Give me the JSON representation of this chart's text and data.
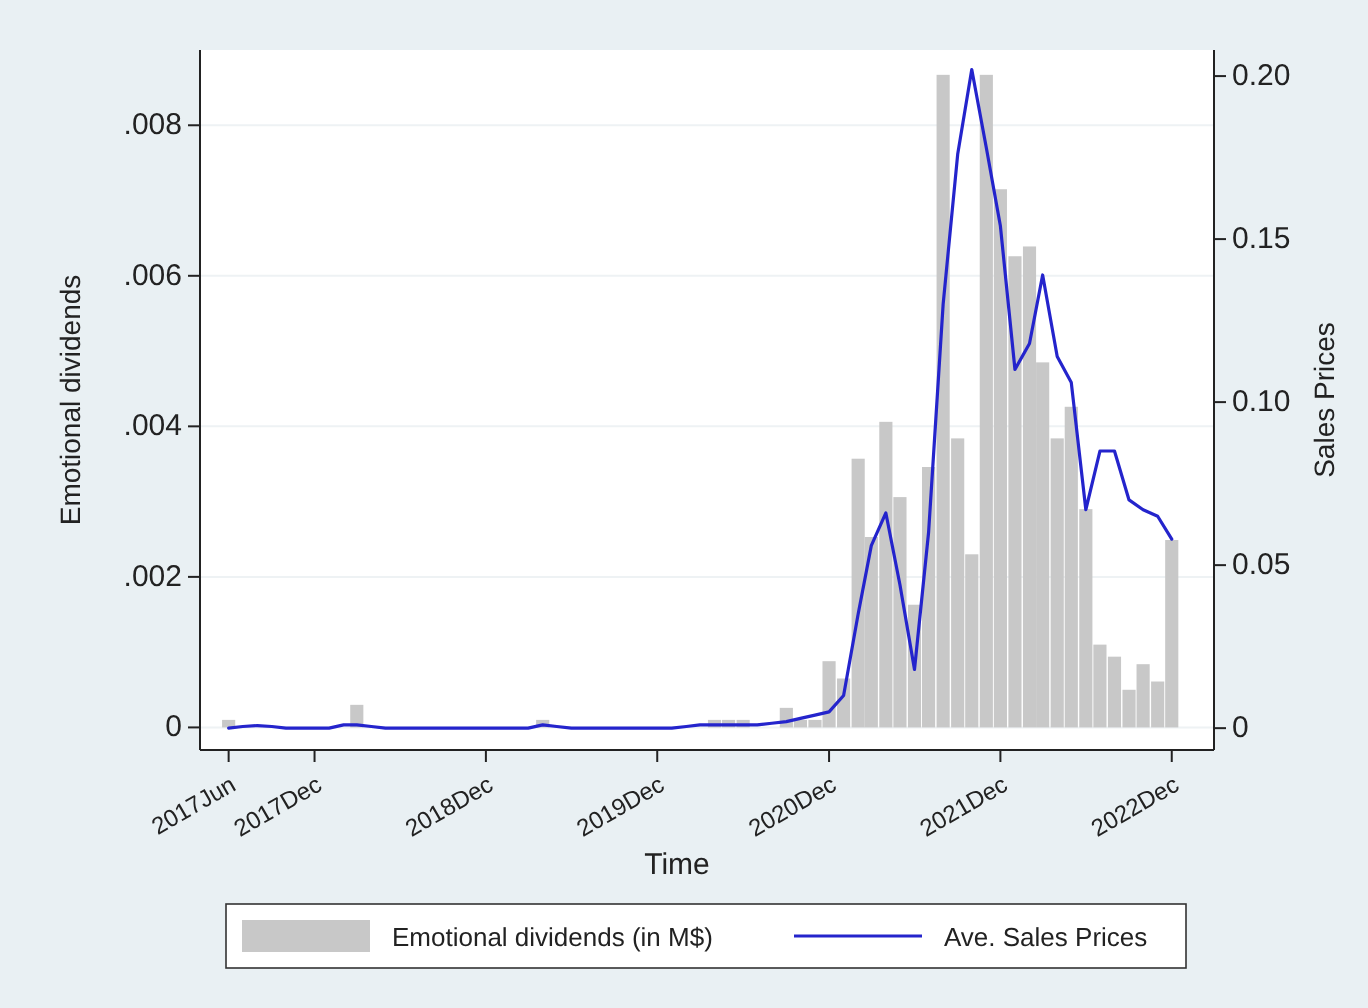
{
  "chart_data": {
    "type": "bar",
    "xlabel": "Time",
    "ylabel": "Emotional dividends",
    "y2label": "Sales Prices",
    "x": [
      "2017-06",
      "2017-07",
      "2017-08",
      "2017-09",
      "2017-10",
      "2017-11",
      "2017-12",
      "2018-01",
      "2018-02",
      "2018-03",
      "2018-04",
      "2018-05",
      "2018-06",
      "2018-07",
      "2018-08",
      "2018-09",
      "2018-10",
      "2018-11",
      "2018-12",
      "2019-01",
      "2019-02",
      "2019-03",
      "2019-04",
      "2019-05",
      "2019-06",
      "2019-07",
      "2019-08",
      "2019-09",
      "2019-10",
      "2019-11",
      "2019-12",
      "2020-01",
      "2020-02",
      "2020-03",
      "2020-04",
      "2020-05",
      "2020-06",
      "2020-07",
      "2020-08",
      "2020-09",
      "2020-10",
      "2020-11",
      "2020-12",
      "2021-01",
      "2021-02",
      "2021-03",
      "2021-04",
      "2021-05",
      "2021-06",
      "2021-07",
      "2021-08",
      "2021-09",
      "2021-10",
      "2021-11",
      "2021-12",
      "2022-01",
      "2022-02",
      "2022-03",
      "2022-04",
      "2022-05",
      "2022-06",
      "2022-07",
      "2022-08",
      "2022-09",
      "2022-10",
      "2022-11",
      "2022-12"
    ],
    "series": [
      {
        "name": "Emotional dividends (in M$)",
        "color": "#c8c8c8",
        "values": [
          0.0001,
          0,
          0,
          0,
          0,
          0,
          0,
          0,
          0,
          0.0003,
          0,
          0,
          0,
          0,
          0,
          0,
          0,
          0,
          0,
          0,
          0,
          0,
          0.0001,
          0,
          0,
          0,
          0,
          0,
          0,
          0,
          0,
          0,
          0,
          0,
          0.0001,
          0.0001,
          0.0001,
          0,
          0,
          0.00026,
          0.0001,
          0.0001,
          0.00088,
          0.00065,
          0.00357,
          0.00253,
          0.00406,
          0.00306,
          0.00163,
          0.00346,
          0.00867,
          0.00384,
          0.0023,
          0.00867,
          0.00715,
          0.00626,
          0.00639,
          0.00485,
          0.00384,
          0.00426,
          0.0029,
          0.0011,
          0.00094,
          0.0005,
          0.00084,
          0.00061,
          0.00249
        ]
      },
      {
        "name": "Ave. Sales Prices",
        "type": "line",
        "axis": "y2",
        "color": "#2424cc",
        "values": [
          0,
          0.0005,
          0.0008,
          0.0005,
          0,
          0,
          0,
          0,
          0.001,
          0.001,
          0.0005,
          0,
          0,
          0,
          0,
          0,
          0,
          0,
          0,
          0,
          0,
          0,
          0.001,
          0.0005,
          0,
          0,
          0,
          0,
          0,
          0,
          0,
          0,
          0.0005,
          0.001,
          0.001,
          0.001,
          0.001,
          0.001,
          0.0015,
          0.002,
          0.003,
          0.004,
          0.005,
          0.01,
          0.035,
          0.056,
          0.066,
          0.044,
          0.018,
          0.06,
          0.13,
          0.176,
          0.202,
          0.178,
          0.154,
          0.11,
          0.118,
          0.139,
          0.114,
          0.106,
          0.067,
          0.085,
          0.085,
          0.07,
          0.067,
          0.065,
          0.058
        ]
      }
    ],
    "xlim": [
      "2017-04",
      "2023-03"
    ],
    "xticks": [
      {
        "value": "2017-06",
        "label": "2017Jun"
      },
      {
        "value": "2017-12",
        "label": "2017Dec"
      },
      {
        "value": "2018-12",
        "label": "2018Dec"
      },
      {
        "value": "2019-12",
        "label": "2019Dec"
      },
      {
        "value": "2020-12",
        "label": "2020Dec"
      },
      {
        "value": "2021-12",
        "label": "2021Dec"
      },
      {
        "value": "2022-12",
        "label": "2022Dec"
      }
    ],
    "ylim": [
      -0.0003,
      0.009
    ],
    "yticks": [
      0,
      {
        "value": 0.002,
        "label": ".002"
      },
      {
        "value": 0.004,
        "label": ".004"
      },
      {
        "value": 0.006,
        "label": ".006"
      },
      {
        "value": 0.008,
        "label": ".008"
      }
    ],
    "y2lim": [
      -0.0067,
      0.208
    ],
    "y2ticks": [
      0,
      {
        "value": 0.05,
        "label": "0.05"
      },
      {
        "value": 0.1,
        "label": "0.10"
      },
      {
        "value": 0.15,
        "label": "0.15"
      },
      {
        "value": 0.2,
        "label": "0.20"
      }
    ],
    "grid": "y",
    "legend": "bottom"
  }
}
